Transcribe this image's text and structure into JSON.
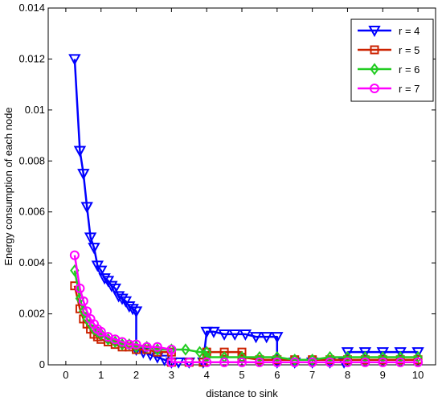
{
  "chart_data": {
    "type": "line",
    "title": "",
    "xlabel": "distance to sink",
    "ylabel": "Energy consumption of each node",
    "xlim": [
      -0.5,
      10.5
    ],
    "ylim": [
      0,
      0.014
    ],
    "xticks": [
      "0",
      "1",
      "2",
      "3",
      "4",
      "5",
      "6",
      "7",
      "8",
      "9",
      "10"
    ],
    "yticks": [
      "0",
      "0.002",
      "0.004",
      "0.006",
      "0.008",
      "0.01",
      "0.012",
      "0.014"
    ],
    "grid": false,
    "legend_position": "top-right",
    "series": [
      {
        "name": "r = 4",
        "color": "#0000ff",
        "marker": "triangle-down",
        "points": [
          [
            0.25,
            0.012
          ],
          [
            0.4,
            0.0084
          ],
          [
            0.5,
            0.0075
          ],
          [
            0.6,
            0.0062
          ],
          [
            0.7,
            0.005
          ],
          [
            0.8,
            0.0046
          ],
          [
            0.9,
            0.0039
          ],
          [
            1.0,
            0.0037
          ],
          [
            1.1,
            0.0034
          ],
          [
            1.2,
            0.0033
          ],
          [
            1.3,
            0.0031
          ],
          [
            1.4,
            0.003
          ],
          [
            1.5,
            0.0027
          ],
          [
            1.6,
            0.0026
          ],
          [
            1.7,
            0.0025
          ],
          [
            1.8,
            0.0023
          ],
          [
            1.9,
            0.0022
          ],
          [
            2.0,
            0.0021
          ],
          [
            2.0,
            0.0006
          ],
          [
            2.2,
            0.0005
          ],
          [
            2.4,
            0.0004
          ],
          [
            2.6,
            0.0003
          ],
          [
            2.8,
            0.0002
          ],
          [
            3.0,
            0.0001
          ],
          [
            3.2,
            0.0001
          ],
          [
            3.5,
            0.0001
          ],
          [
            3.9,
            0.0001
          ],
          [
            4.0,
            0.0013
          ],
          [
            4.2,
            0.0013
          ],
          [
            4.5,
            0.0012
          ],
          [
            4.8,
            0.0012
          ],
          [
            5.1,
            0.0012
          ],
          [
            5.4,
            0.0011
          ],
          [
            5.7,
            0.0011
          ],
          [
            6.0,
            0.0011
          ],
          [
            6.0,
            0.0001
          ],
          [
            6.5,
            0.0001
          ],
          [
            7.0,
            0.0001
          ],
          [
            7.5,
            0.0001
          ],
          [
            7.9,
            0.0001
          ],
          [
            8.0,
            0.0005
          ],
          [
            8.5,
            0.0005
          ],
          [
            9.0,
            0.0005
          ],
          [
            9.5,
            0.0005
          ],
          [
            10.0,
            0.0005
          ]
        ]
      },
      {
        "name": "r = 5",
        "color": "#cc2200",
        "marker": "square",
        "points": [
          [
            0.25,
            0.0031
          ],
          [
            0.4,
            0.0022
          ],
          [
            0.5,
            0.0018
          ],
          [
            0.6,
            0.0016
          ],
          [
            0.7,
            0.0014
          ],
          [
            0.8,
            0.0012
          ],
          [
            0.9,
            0.0011
          ],
          [
            1.0,
            0.001
          ],
          [
            1.2,
            0.0009
          ],
          [
            1.4,
            0.0008
          ],
          [
            1.6,
            0.0007
          ],
          [
            1.8,
            0.0007
          ],
          [
            2.0,
            0.0006
          ],
          [
            2.3,
            0.0006
          ],
          [
            2.6,
            0.0005
          ],
          [
            3.0,
            0.0005
          ],
          [
            3.0,
            0.0001
          ],
          [
            3.5,
            0.0001
          ],
          [
            3.9,
            0.0001
          ],
          [
            4.0,
            0.0005
          ],
          [
            4.5,
            0.0005
          ],
          [
            5.0,
            0.0005
          ],
          [
            5.0,
            0.0003
          ],
          [
            5.5,
            0.0002
          ],
          [
            6.0,
            0.0002
          ],
          [
            6.5,
            0.0002
          ],
          [
            7.0,
            0.0002
          ],
          [
            7.5,
            0.0002
          ],
          [
            8.0,
            0.0002
          ],
          [
            8.5,
            0.0002
          ],
          [
            9.0,
            0.0002
          ],
          [
            9.5,
            0.0002
          ],
          [
            10.0,
            0.0002
          ]
        ]
      },
      {
        "name": "r = 6",
        "color": "#22cc22",
        "marker": "diamond",
        "points": [
          [
            0.25,
            0.0037
          ],
          [
            0.4,
            0.0026
          ],
          [
            0.5,
            0.0021
          ],
          [
            0.6,
            0.0018
          ],
          [
            0.7,
            0.0016
          ],
          [
            0.8,
            0.0014
          ],
          [
            0.9,
            0.0013
          ],
          [
            1.0,
            0.0012
          ],
          [
            1.2,
            0.001
          ],
          [
            1.4,
            0.0009
          ],
          [
            1.6,
            0.0008
          ],
          [
            1.8,
            0.0008
          ],
          [
            2.0,
            0.0007
          ],
          [
            2.3,
            0.0007
          ],
          [
            2.6,
            0.0006
          ],
          [
            3.0,
            0.0006
          ],
          [
            3.4,
            0.0006
          ],
          [
            3.8,
            0.0005
          ],
          [
            4.0,
            0.0005
          ],
          [
            4.0,
            0.0003
          ],
          [
            4.5,
            0.0003
          ],
          [
            5.0,
            0.0003
          ],
          [
            5.5,
            0.0003
          ],
          [
            6.0,
            0.0003
          ],
          [
            6.5,
            0.0002
          ],
          [
            7.0,
            0.0002
          ],
          [
            7.5,
            0.0003
          ],
          [
            8.0,
            0.0003
          ],
          [
            8.5,
            0.0003
          ],
          [
            9.0,
            0.0003
          ],
          [
            9.5,
            0.0003
          ],
          [
            10.0,
            0.0003
          ]
        ]
      },
      {
        "name": "r = 7",
        "color": "#ff00ff",
        "marker": "circle",
        "points": [
          [
            0.25,
            0.0043
          ],
          [
            0.4,
            0.003
          ],
          [
            0.5,
            0.0025
          ],
          [
            0.6,
            0.0021
          ],
          [
            0.7,
            0.0018
          ],
          [
            0.8,
            0.0016
          ],
          [
            0.9,
            0.0014
          ],
          [
            1.0,
            0.0013
          ],
          [
            1.2,
            0.0011
          ],
          [
            1.4,
            0.001
          ],
          [
            1.6,
            0.0009
          ],
          [
            1.8,
            0.0008
          ],
          [
            2.0,
            0.0008
          ],
          [
            2.3,
            0.0007
          ],
          [
            2.6,
            0.0007
          ],
          [
            3.0,
            0.0006
          ],
          [
            3.0,
            0.0001
          ],
          [
            3.5,
            0.0001
          ],
          [
            4.0,
            0.0001
          ],
          [
            4.5,
            0.0001
          ],
          [
            5.0,
            0.0001
          ],
          [
            5.5,
            0.0001
          ],
          [
            6.0,
            0.0001
          ],
          [
            6.5,
            0.0001
          ],
          [
            7.0,
            0.0001
          ],
          [
            7.5,
            0.0001
          ],
          [
            8.0,
            0.0001
          ],
          [
            8.5,
            0.0001
          ],
          [
            9.0,
            0.0001
          ],
          [
            9.5,
            0.0001
          ],
          [
            10.0,
            0.0001
          ]
        ]
      }
    ]
  }
}
